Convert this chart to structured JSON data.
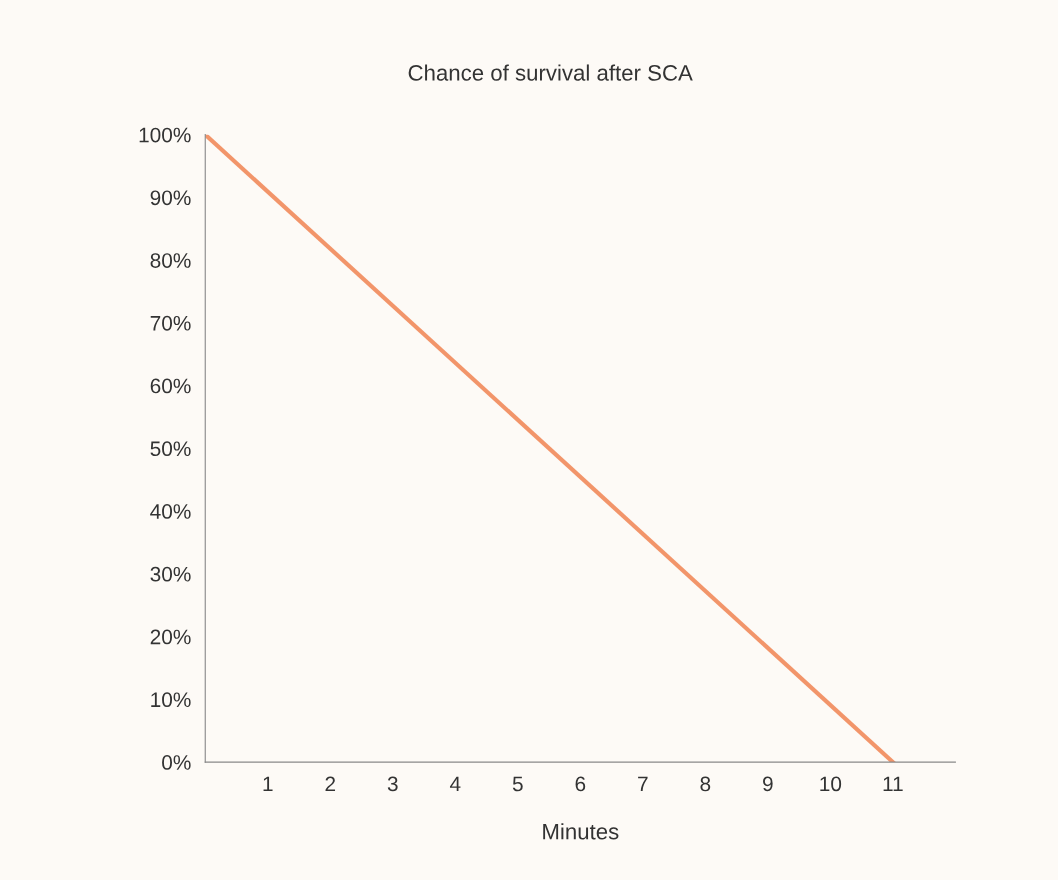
{
  "chart_data": {
    "type": "line",
    "title": "Chance of survival after SCA",
    "xlabel": "Minutes",
    "x": [
      0,
      11
    ],
    "values": [
      100,
      0
    ],
    "color": "#f2956a",
    "xlim": [
      0,
      12
    ],
    "xticks": [
      1,
      2,
      3,
      4,
      5,
      6,
      7,
      8,
      9,
      10,
      11
    ],
    "ylim": [
      0,
      100
    ],
    "yticks": [
      {
        "value": 0,
        "label": "0%"
      },
      {
        "value": 10,
        "label": "10%"
      },
      {
        "value": 20,
        "label": "20%"
      },
      {
        "value": 30,
        "label": "30%"
      },
      {
        "value": 40,
        "label": "40%"
      },
      {
        "value": 50,
        "label": "50%"
      },
      {
        "value": 60,
        "label": "60%"
      },
      {
        "value": 70,
        "label": "70%"
      },
      {
        "value": 80,
        "label": "80%"
      },
      {
        "value": 90,
        "label": "90%"
      },
      {
        "value": 100,
        "label": "100%"
      }
    ],
    "grid": false,
    "legend": false,
    "marker": "none",
    "line_style": "solid"
  }
}
